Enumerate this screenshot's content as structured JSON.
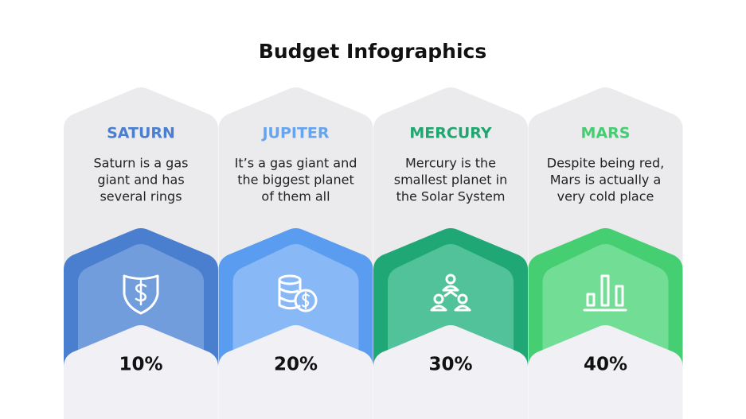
{
  "title": "Budget Infographics",
  "items": [
    {
      "name": "SATURN",
      "description": [
        "Saturn is a gas",
        "giant and has",
        "several rings"
      ],
      "value": "10%"
    },
    {
      "name": "JUPITER",
      "description": [
        "It’s a gas giant and",
        "the biggest planet",
        "of them all"
      ],
      "value": "20%"
    },
    {
      "name": "MERCURY",
      "description": [
        "Mercury is the",
        "smallest planet in",
        "the Solar System"
      ],
      "value": "30%"
    },
    {
      "name": "MARS",
      "description": [
        "Despite being red,",
        "Mars is actually a",
        "very cold place"
      ],
      "value": "40%"
    }
  ]
}
